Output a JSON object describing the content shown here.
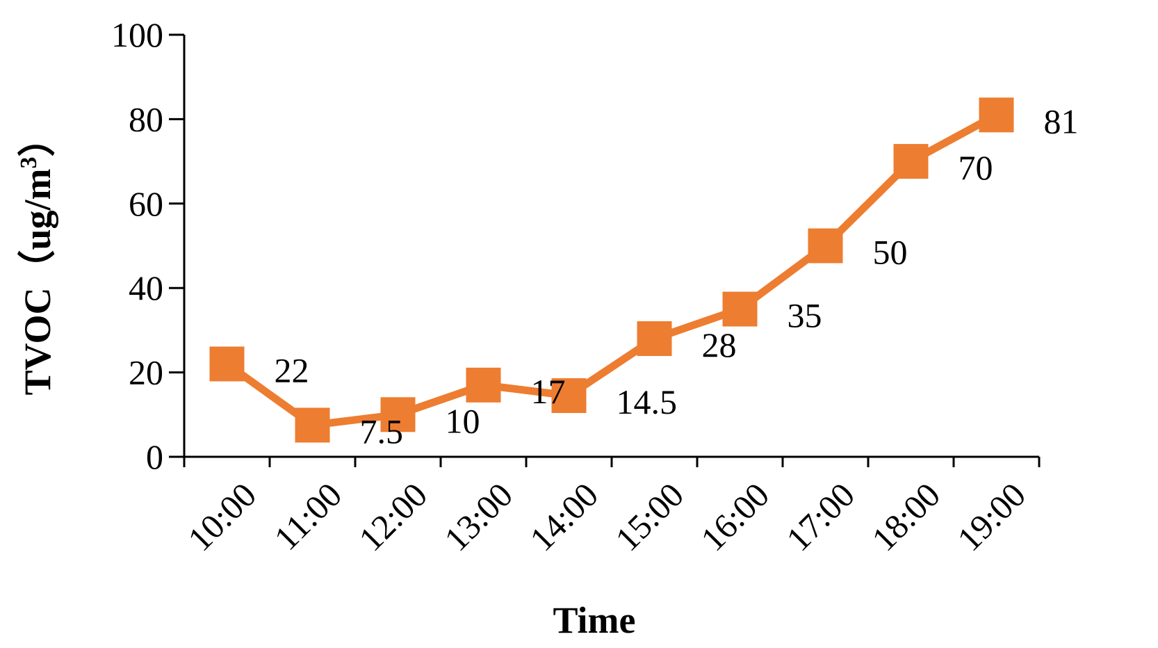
{
  "chart_data": {
    "type": "line",
    "categories": [
      "10:00",
      "11:00",
      "12:00",
      "13:00",
      "14:00",
      "15:00",
      "16:00",
      "17:00",
      "18:00",
      "19:00"
    ],
    "series": [
      {
        "values": [
          22,
          7.5,
          10,
          17,
          14.5,
          28,
          35,
          50,
          70,
          81
        ],
        "data_labels": [
          "22",
          "7.5",
          "10",
          "17",
          "14.5",
          "28",
          "35",
          "50",
          "70",
          "81"
        ],
        "color": "#ed7d31",
        "marker": "square"
      }
    ],
    "xlabel": "Time",
    "ylabel": "TVOC（ug/m",
    "ylabel_superscript": "3",
    "ylabel_suffix": "）",
    "ylim": [
      0,
      100
    ],
    "yticks": [
      "0",
      "20",
      "40",
      "60",
      "80",
      "100"
    ],
    "grid": false,
    "legend": "none"
  }
}
